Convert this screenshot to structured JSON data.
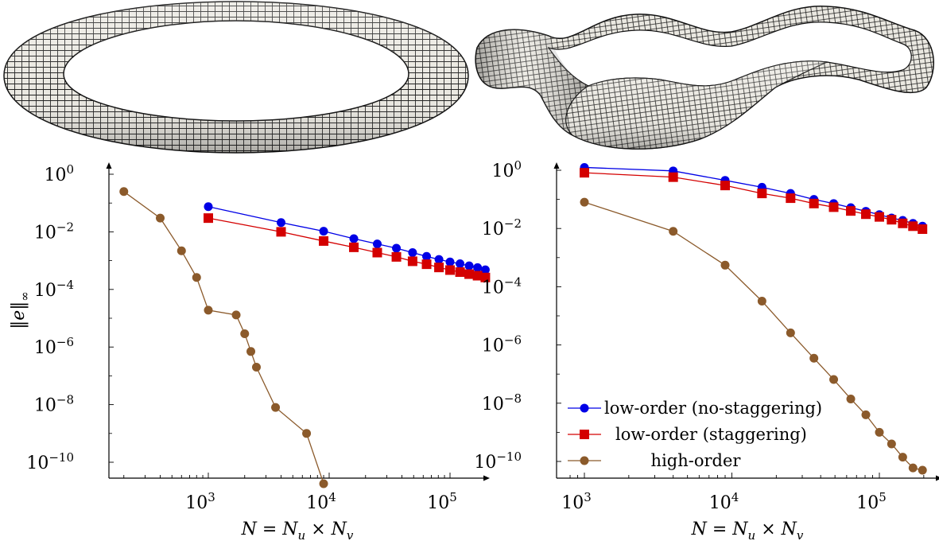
{
  "figure": {
    "colors": {
      "no_staggering": "#0000e6",
      "staggering": "#d40000",
      "high_order": "#8b5a2b",
      "surface_fill": "#e9e7e0",
      "mesh_line": "#1a1a1a"
    },
    "surfaces": [
      {
        "name": "torus",
        "mesh": "quad-mesh"
      },
      {
        "name": "twisted-ribbon-torus",
        "mesh": "quad-mesh"
      }
    ]
  },
  "chart_data": [
    {
      "type": "line",
      "xscale": "log",
      "yscale": "log",
      "xlim": [
        150,
        200000
      ],
      "ylim": [
        1e-11,
        2
      ],
      "xlabel_parts": [
        "N",
        " = ",
        "N",
        "u",
        " × ",
        "N",
        "v"
      ],
      "ylabel_parts": [
        "‖",
        "e",
        "‖",
        "∞"
      ],
      "xticks": [
        {
          "value": 1000,
          "base": "10",
          "exp": "3"
        },
        {
          "value": 10000,
          "base": "10",
          "exp": "4"
        },
        {
          "value": 100000,
          "base": "10",
          "exp": "5"
        }
      ],
      "yticks": [
        {
          "value": 1,
          "base": "10",
          "exp": "0"
        },
        {
          "value": 0.01,
          "base": "10",
          "exp": "−2"
        },
        {
          "value": 0.0001,
          "base": "10",
          "exp": "−4"
        },
        {
          "value": 1e-06,
          "base": "10",
          "exp": "−6"
        },
        {
          "value": 1e-08,
          "base": "10",
          "exp": "−8"
        },
        {
          "value": 1e-10,
          "base": "10",
          "exp": "−10"
        }
      ],
      "legend": null,
      "series": [
        {
          "key": "no_staggering",
          "marker": "circle",
          "x": [
            1000,
            4000,
            9000,
            16000,
            25000,
            36000,
            49000,
            64000,
            81000,
            100000,
            121000,
            144000,
            169000,
            196000
          ],
          "y": [
            0.075,
            0.021,
            0.0105,
            0.0058,
            0.0038,
            0.0027,
            0.0019,
            0.0014,
            0.0011,
            0.0009,
            0.00078,
            0.00066,
            0.00057,
            0.00048
          ]
        },
        {
          "key": "staggering",
          "marker": "square",
          "x": [
            1000,
            4000,
            9000,
            16000,
            25000,
            36000,
            49000,
            64000,
            81000,
            100000,
            121000,
            144000,
            169000,
            196000
          ],
          "y": [
            0.03,
            0.01,
            0.0048,
            0.0029,
            0.0019,
            0.00135,
            0.00095,
            0.00075,
            0.00058,
            0.00047,
            0.0004,
            0.00034,
            0.0003,
            0.00026
          ]
        },
        {
          "key": "high_order",
          "marker": "circle",
          "x": [
            200,
            400,
            600,
            800,
            1000,
            1700,
            2000,
            2250,
            2500,
            3600,
            6500,
            9000
          ],
          "y": [
            0.25,
            0.03,
            0.0022,
            0.00026,
            1.9e-05,
            1.3e-05,
            2.9e-06,
            7e-07,
            2e-07,
            8e-09,
            1e-09,
            1.8e-11
          ]
        }
      ]
    },
    {
      "type": "line",
      "xscale": "log",
      "yscale": "log",
      "xlim": [
        800,
        220000
      ],
      "ylim": [
        2e-11,
        1.6
      ],
      "xlabel_parts": [
        "N",
        " = ",
        "N",
        "u",
        " × ",
        "N",
        "v"
      ],
      "ylabel_parts": [],
      "xticks": [
        {
          "value": 1000,
          "base": "10",
          "exp": "3"
        },
        {
          "value": 10000,
          "base": "10",
          "exp": "4"
        },
        {
          "value": 100000,
          "base": "10",
          "exp": "5"
        }
      ],
      "yticks": [
        {
          "value": 1,
          "base": "10",
          "exp": "0"
        },
        {
          "value": 0.01,
          "base": "10",
          "exp": "−2"
        },
        {
          "value": 0.0001,
          "base": "10",
          "exp": "−4"
        },
        {
          "value": 1e-06,
          "base": "10",
          "exp": "−6"
        },
        {
          "value": 1e-08,
          "base": "10",
          "exp": "−8"
        },
        {
          "value": 1e-10,
          "base": "10",
          "exp": "−10"
        }
      ],
      "legend": {
        "position": "bottom-left",
        "entries": [
          {
            "key": "no_staggering",
            "marker": "circle",
            "label": "low-order (no-staggering)"
          },
          {
            "key": "staggering",
            "marker": "square",
            "label": "low-order (staggering)"
          },
          {
            "key": "high_order",
            "marker": "circle",
            "label": "high-order"
          }
        ]
      },
      "series": [
        {
          "key": "no_staggering",
          "marker": "circle",
          "x": [
            1000,
            4000,
            9000,
            16000,
            25000,
            36000,
            49000,
            64000,
            81000,
            100000,
            121000,
            144000,
            169000,
            196000
          ],
          "y": [
            1.25,
            0.95,
            0.45,
            0.26,
            0.16,
            0.1,
            0.072,
            0.052,
            0.039,
            0.03,
            0.023,
            0.019,
            0.015,
            0.012
          ]
        },
        {
          "key": "staggering",
          "marker": "square",
          "x": [
            1000,
            4000,
            9000,
            16000,
            25000,
            36000,
            49000,
            64000,
            81000,
            100000,
            121000,
            144000,
            169000,
            196000
          ],
          "y": [
            0.82,
            0.58,
            0.3,
            0.16,
            0.11,
            0.072,
            0.054,
            0.04,
            0.031,
            0.025,
            0.02,
            0.015,
            0.012,
            0.0095
          ]
        },
        {
          "key": "high_order",
          "marker": "circle",
          "x": [
            1000,
            4000,
            9000,
            16000,
            25000,
            36000,
            49000,
            64000,
            81000,
            100000,
            121000,
            144000,
            169000,
            196000
          ],
          "y": [
            0.08,
            0.008,
            0.00055,
            3.2e-05,
            2.6e-06,
            3.5e-07,
            6.5e-08,
            1.4e-08,
            4e-09,
            1e-09,
            4e-10,
            1.4e-10,
            6e-11,
            5e-11
          ]
        }
      ]
    }
  ]
}
